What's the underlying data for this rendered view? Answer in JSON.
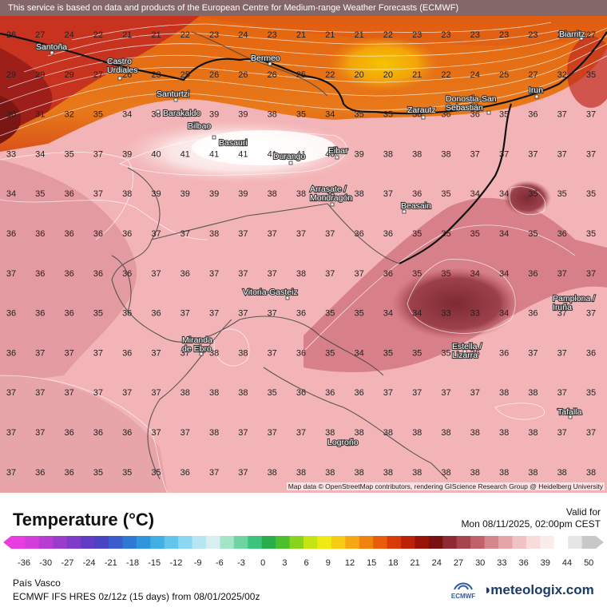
{
  "banner": "This service is based on data and products of the European Centre for Medium-range Weather Forecasts (ECMWF)",
  "attribution": "Map data © OpenStreetMap contributors, rendering GIScience Research Group @ Heidelberg University",
  "legend": {
    "title": "Temperature (°C)",
    "valid_label": "Valid for",
    "valid_date": "Mon 08/11/2025, 02:00pm CEST",
    "ticks": [
      "-36",
      "-30",
      "-27",
      "-24",
      "-21",
      "-18",
      "-15",
      "-12",
      "-9",
      "-6",
      "-3",
      "0",
      "3",
      "6",
      "9",
      "12",
      "15",
      "18",
      "21",
      "24",
      "27",
      "30",
      "33",
      "36",
      "39",
      "44",
      "50"
    ]
  },
  "footer": {
    "region": "País Vasco",
    "model": "ECMWF IFS HRES 0z/12z (15 days) from 08/01/2025/00z",
    "ecmwf": "ECMWF",
    "brand": "meteologix.com"
  },
  "cities": [
    "Santoña",
    "Castro Urdiales",
    "Bermeo",
    "Santurtzi",
    "Barakaldo",
    "Bilbao",
    "Basauri",
    "Durango",
    "Eibar",
    "Arrasate / Mondragón",
    "Beasain",
    "Zarautz",
    "Donostia-San Sebastián",
    "Irun",
    "Biarritz",
    "Vitoria-Gasteiz",
    "Miranda de Ebro",
    "Estella / Lizarra",
    "Pamplona / Iruña",
    "Tafalla",
    "Logroño"
  ],
  "grid_rows": [
    [
      "26",
      "27",
      "24",
      "22",
      "21",
      "21",
      "22",
      "23",
      "24",
      "23",
      "21",
      "21",
      "21",
      "22",
      "23",
      "23",
      "23",
      "23",
      "23",
      "25",
      "27"
    ],
    [
      "29",
      "29",
      "29",
      "27",
      "26",
      "23",
      "25",
      "26",
      "26",
      "26",
      "25",
      "22",
      "20",
      "20",
      "21",
      "22",
      "24",
      "25",
      "27",
      "32",
      "35"
    ],
    [
      "30",
      "31",
      "32",
      "35",
      "34",
      "38",
      "38",
      "39",
      "39",
      "38",
      "35",
      "34",
      "35",
      "35",
      "36",
      "36",
      "36",
      "35",
      "36",
      "37",
      "37"
    ],
    [
      "33",
      "34",
      "35",
      "37",
      "39",
      "40",
      "41",
      "41",
      "41",
      "41",
      "41",
      "40",
      "39",
      "38",
      "38",
      "38",
      "37",
      "37",
      "37",
      "37",
      "37"
    ],
    [
      "34",
      "35",
      "36",
      "37",
      "38",
      "39",
      "39",
      "39",
      "39",
      "38",
      "38",
      "38",
      "38",
      "37",
      "36",
      "35",
      "34",
      "34",
      "35",
      "35",
      "35"
    ],
    [
      "36",
      "36",
      "36",
      "36",
      "36",
      "37",
      "37",
      "38",
      "37",
      "37",
      "37",
      "37",
      "36",
      "36",
      "35",
      "35",
      "35",
      "34",
      "35",
      "36",
      "35"
    ],
    [
      "37",
      "36",
      "36",
      "36",
      "36",
      "37",
      "36",
      "37",
      "37",
      "37",
      "38",
      "37",
      "37",
      "36",
      "35",
      "35",
      "34",
      "34",
      "36",
      "37",
      "37"
    ],
    [
      "36",
      "36",
      "36",
      "35",
      "36",
      "36",
      "37",
      "37",
      "37",
      "37",
      "36",
      "35",
      "35",
      "34",
      "34",
      "33",
      "33",
      "34",
      "36",
      "37",
      "37"
    ],
    [
      "36",
      "37",
      "37",
      "37",
      "36",
      "37",
      "37",
      "38",
      "38",
      "37",
      "36",
      "35",
      "34",
      "35",
      "35",
      "35",
      "36",
      "36",
      "37",
      "37",
      "36"
    ],
    [
      "37",
      "37",
      "37",
      "37",
      "37",
      "37",
      "38",
      "38",
      "38",
      "35",
      "36",
      "36",
      "36",
      "37",
      "37",
      "37",
      "37",
      "38",
      "38",
      "37",
      "35"
    ],
    [
      "37",
      "37",
      "36",
      "36",
      "36",
      "37",
      "37",
      "38",
      "37",
      "37",
      "37",
      "38",
      "38",
      "38",
      "38",
      "38",
      "38",
      "38",
      "38",
      "37",
      "37"
    ],
    [
      "37",
      "36",
      "36",
      "35",
      "35",
      "35",
      "36",
      "37",
      "37",
      "38",
      "38",
      "38",
      "38",
      "38",
      "38",
      "38",
      "38",
      "38",
      "38",
      "38",
      "38"
    ]
  ]
}
